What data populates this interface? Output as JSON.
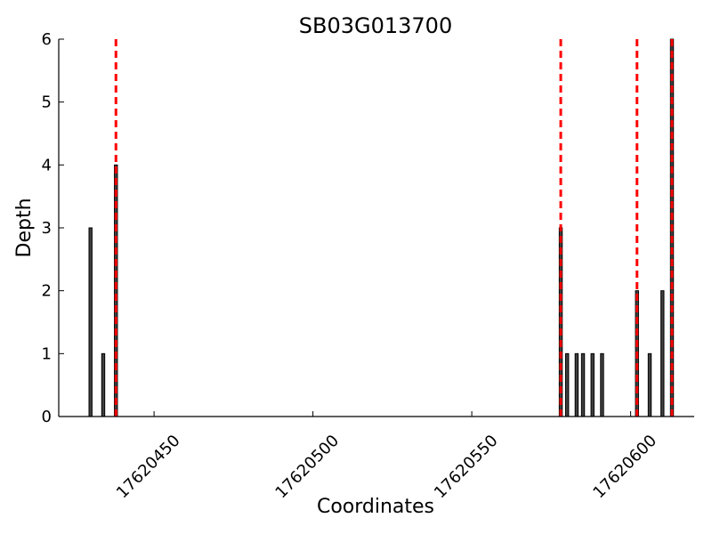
{
  "chart_data": {
    "type": "bar",
    "title": "SB03G013700",
    "xlabel": "Coordinates",
    "ylabel": "Depth",
    "xlim": [
      17620420,
      17620620
    ],
    "ylim": [
      0,
      6
    ],
    "x_ticks": [
      17620450,
      17620500,
      17620550,
      17620600
    ],
    "y_ticks": [
      0,
      1,
      2,
      3,
      4,
      5,
      6
    ],
    "grid": false,
    "bar_color": "#404040",
    "bar_edge_color": "#000000",
    "line_color": "#ff0000",
    "bars": [
      {
        "x": 17620430,
        "y": 3
      },
      {
        "x": 17620434,
        "y": 1
      },
      {
        "x": 17620438,
        "y": 4
      },
      {
        "x": 17620578,
        "y": 3
      },
      {
        "x": 17620580,
        "y": 1
      },
      {
        "x": 17620583,
        "y": 1
      },
      {
        "x": 17620585,
        "y": 1
      },
      {
        "x": 17620588,
        "y": 1
      },
      {
        "x": 17620591,
        "y": 1
      },
      {
        "x": 17620602,
        "y": 2
      },
      {
        "x": 17620606,
        "y": 1
      },
      {
        "x": 17620610,
        "y": 2
      },
      {
        "x": 17620613,
        "y": 6
      }
    ],
    "dashed_lines_x": [
      17620438,
      17620578,
      17620602,
      17620613
    ]
  }
}
